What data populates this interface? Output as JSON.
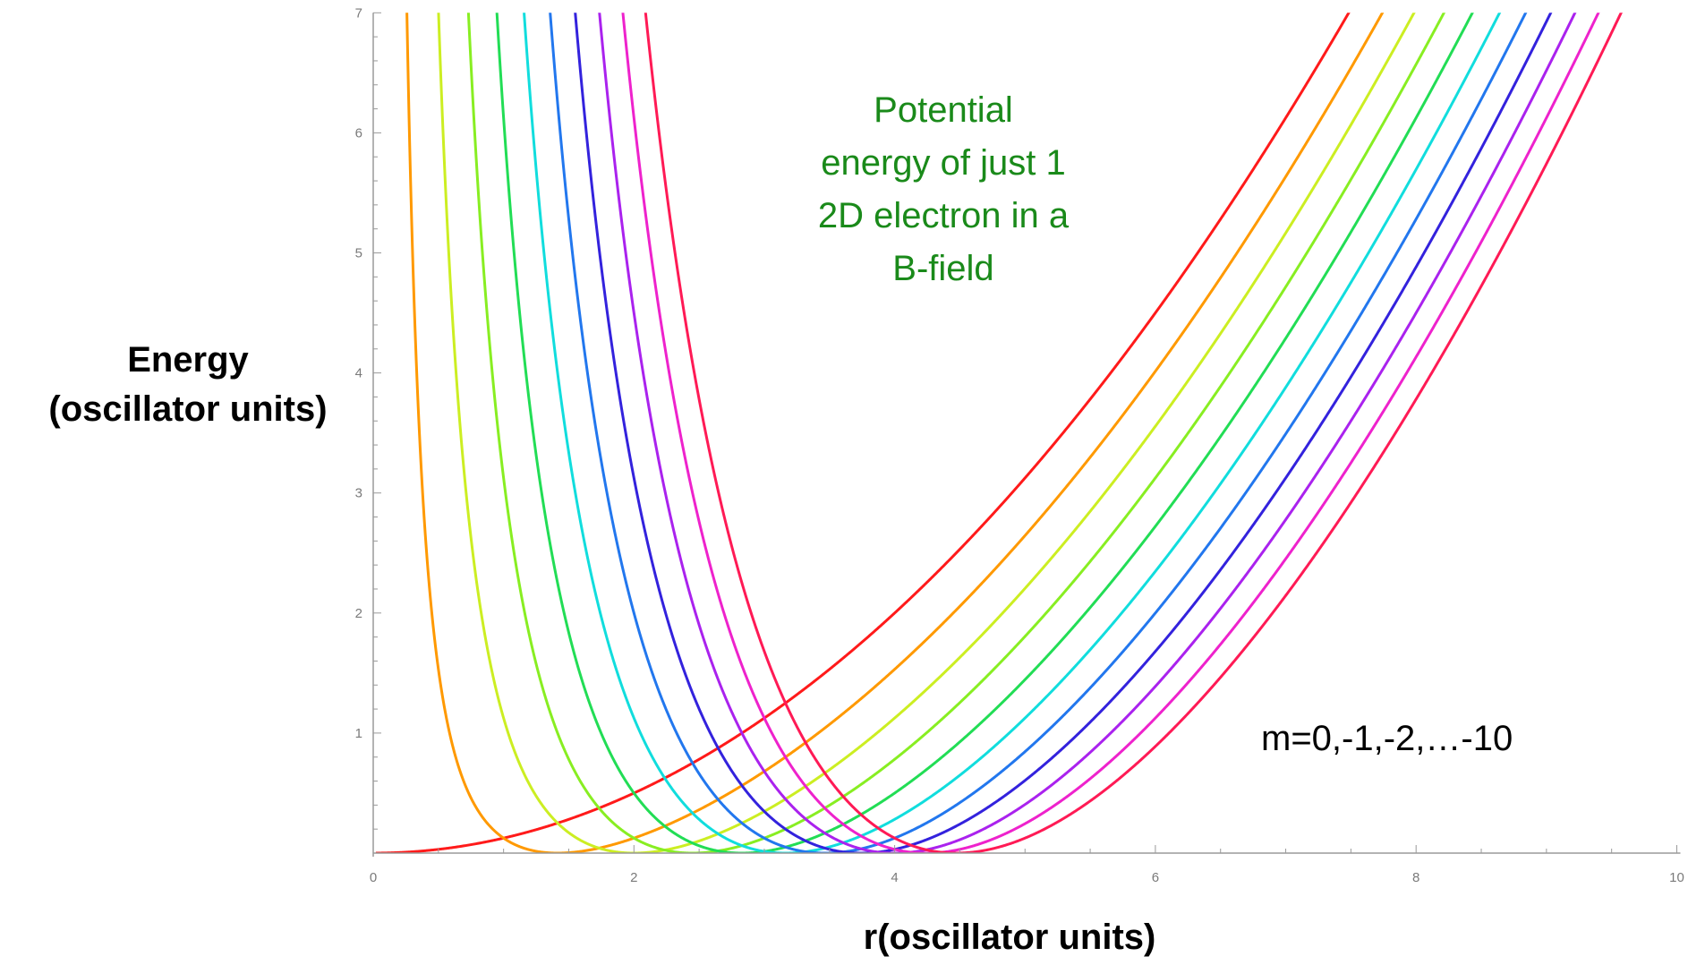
{
  "chart_data": {
    "type": "line",
    "xlabel": "r(oscillator units)",
    "ylabel_lines": [
      "Energy",
      "(oscillator units)"
    ],
    "xlim": [
      0,
      10
    ],
    "ylim": [
      0,
      7
    ],
    "x_ticks": [
      0,
      2,
      4,
      6,
      8,
      10
    ],
    "x_tick_labels": [
      "0",
      "2",
      "4",
      "6",
      "8",
      "10"
    ],
    "y_ticks": [
      1,
      2,
      3,
      4,
      5,
      6,
      7
    ],
    "y_tick_labels": [
      "1",
      "2",
      "3",
      "4",
      "5",
      "6",
      "7"
    ],
    "grid": false,
    "annotations": [
      {
        "lines": [
          "Potential",
          "energy of just 1",
          "2D electron in a",
          "B-field"
        ],
        "color": "#1a8a1a"
      },
      {
        "lines": [
          "m=0,-1,-2,…-10"
        ],
        "color": "#000000"
      }
    ],
    "function": "V(r) = m^2/(2 r^2) + r^2/8 - |m|/2",
    "series": [
      {
        "m": 0,
        "color": "#ff1a1a"
      },
      {
        "m": -1,
        "color": "#ff9900"
      },
      {
        "m": -2,
        "color": "#ccee22"
      },
      {
        "m": -3,
        "color": "#88ee22"
      },
      {
        "m": -4,
        "color": "#22dd55"
      },
      {
        "m": -5,
        "color": "#11dddd"
      },
      {
        "m": -6,
        "color": "#2277ee"
      },
      {
        "m": -7,
        "color": "#3322dd"
      },
      {
        "m": -8,
        "color": "#aa22ee"
      },
      {
        "m": -9,
        "color": "#ee22cc"
      },
      {
        "m": -10,
        "color": "#ff1a55"
      }
    ]
  }
}
